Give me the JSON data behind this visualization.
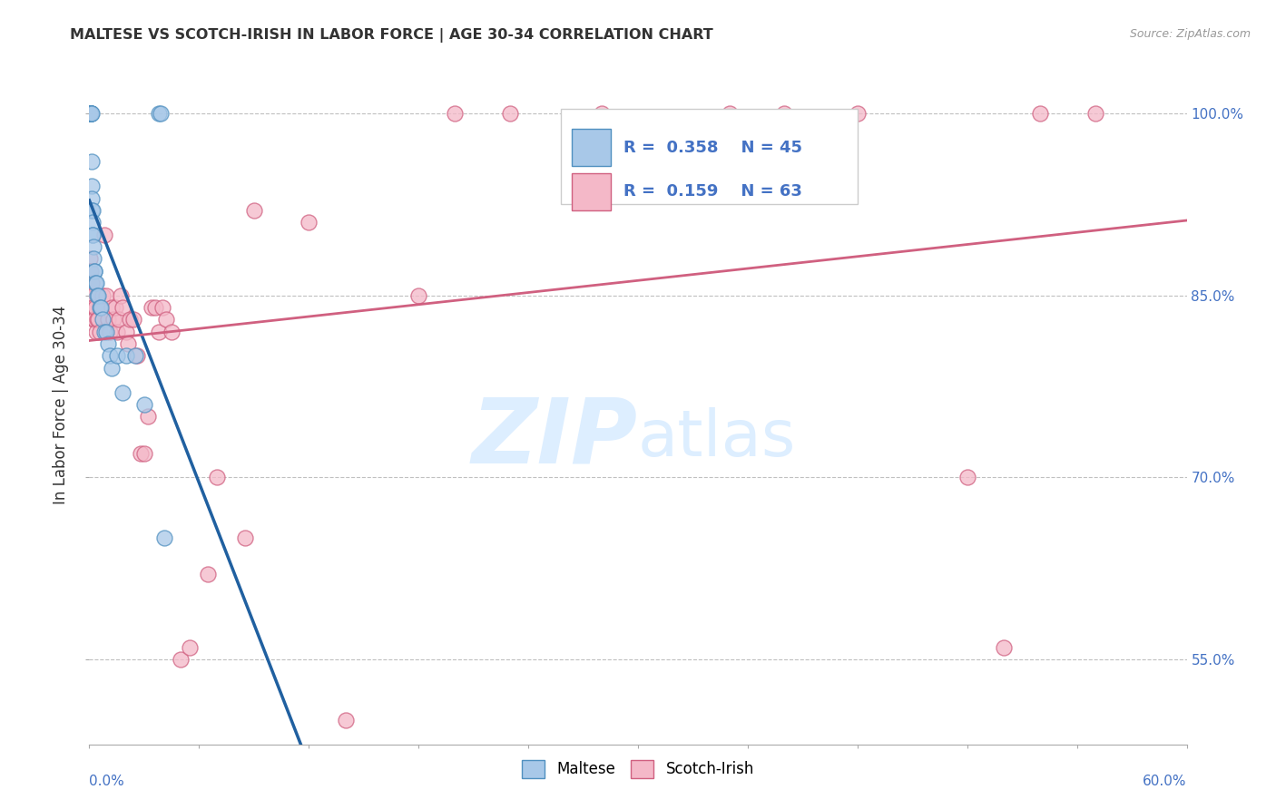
{
  "title": "MALTESE VS SCOTCH-IRISH IN LABOR FORCE | AGE 30-34 CORRELATION CHART",
  "source": "Source: ZipAtlas.com",
  "ylabel": "In Labor Force | Age 30-34",
  "xlim": [
    0.0,
    60.0
  ],
  "ylim": [
    48.0,
    104.0
  ],
  "yticks": [
    55.0,
    70.0,
    85.0,
    100.0
  ],
  "ytick_labels": [
    "55.0%",
    "70.0%",
    "85.0%",
    "100.0%"
  ],
  "legend_r_maltese": "0.358",
  "legend_n_maltese": "45",
  "legend_r_scotch": "0.159",
  "legend_n_scotch": "63",
  "maltese_color": "#a8c8e8",
  "scotch_color": "#f4b8c8",
  "maltese_edge_color": "#5090c0",
  "scotch_edge_color": "#d06080",
  "maltese_line_color": "#2060a0",
  "scotch_line_color": "#d06080",
  "watermark_color": "#ddeeff",
  "maltese_x": [
    0.02,
    0.03,
    0.04,
    0.05,
    0.06,
    0.06,
    0.07,
    0.08,
    0.08,
    0.09,
    0.1,
    0.1,
    0.11,
    0.12,
    0.13,
    0.14,
    0.15,
    0.16,
    0.17,
    0.18,
    0.2,
    0.22,
    0.25,
    0.27,
    0.3,
    0.35,
    0.4,
    0.45,
    0.5,
    0.55,
    0.6,
    0.7,
    0.8,
    0.9,
    1.0,
    1.1,
    1.2,
    1.5,
    1.8,
    2.0,
    2.5,
    3.0,
    3.8,
    3.9,
    4.1
  ],
  "maltese_y": [
    100.0,
    100.0,
    100.0,
    100.0,
    100.0,
    100.0,
    100.0,
    100.0,
    100.0,
    100.0,
    100.0,
    100.0,
    100.0,
    96.0,
    94.0,
    93.0,
    92.0,
    92.0,
    91.0,
    90.0,
    90.0,
    89.0,
    88.0,
    87.0,
    87.0,
    86.0,
    86.0,
    85.0,
    85.0,
    84.0,
    84.0,
    83.0,
    82.0,
    82.0,
    81.0,
    80.0,
    79.0,
    80.0,
    77.0,
    80.0,
    80.0,
    76.0,
    100.0,
    100.0,
    65.0
  ],
  "scotch_x": [
    0.02,
    0.04,
    0.06,
    0.08,
    0.1,
    0.12,
    0.14,
    0.16,
    0.18,
    0.2,
    0.25,
    0.3,
    0.35,
    0.4,
    0.45,
    0.5,
    0.55,
    0.6,
    0.7,
    0.8,
    0.9,
    1.0,
    1.1,
    1.2,
    1.3,
    1.4,
    1.5,
    1.6,
    1.7,
    1.8,
    2.0,
    2.1,
    2.2,
    2.4,
    2.6,
    2.8,
    3.0,
    3.2,
    3.4,
    3.6,
    3.8,
    4.0,
    4.2,
    4.5,
    5.0,
    5.5,
    7.0,
    9.0,
    12.0,
    18.0,
    20.0,
    23.0,
    28.0,
    35.0,
    38.0,
    42.0,
    48.0,
    50.0,
    52.0,
    55.0,
    6.5,
    8.5,
    14.0
  ],
  "scotch_y": [
    88.0,
    87.0,
    86.0,
    87.0,
    85.0,
    86.0,
    84.0,
    84.0,
    85.0,
    84.0,
    83.0,
    83.0,
    84.0,
    82.0,
    83.0,
    83.0,
    82.0,
    84.0,
    85.0,
    90.0,
    85.0,
    83.0,
    82.0,
    84.0,
    83.0,
    84.0,
    82.0,
    83.0,
    85.0,
    84.0,
    82.0,
    81.0,
    83.0,
    83.0,
    80.0,
    72.0,
    72.0,
    75.0,
    84.0,
    84.0,
    82.0,
    84.0,
    83.0,
    82.0,
    55.0,
    56.0,
    70.0,
    92.0,
    91.0,
    85.0,
    100.0,
    100.0,
    100.0,
    100.0,
    100.0,
    100.0,
    70.0,
    56.0,
    100.0,
    100.0,
    62.0,
    65.0,
    50.0
  ]
}
